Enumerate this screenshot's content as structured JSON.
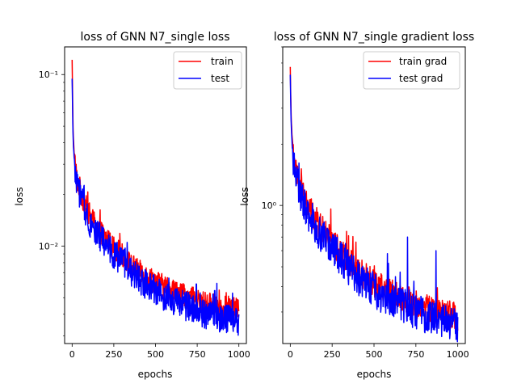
{
  "chart_data": [
    {
      "type": "line",
      "title": "loss of GNN N7_single loss",
      "xlabel": "epochs",
      "ylabel": "loss",
      "yscale": "log",
      "xlim": [
        -45,
        1045
      ],
      "ylim": [
        0.0027,
        0.145
      ],
      "xticks": [
        0,
        250,
        500,
        750,
        1000
      ],
      "xtick_labels": [
        "0",
        "250",
        "500",
        "750",
        "1000"
      ],
      "yticks_major": [
        0.01,
        0.1
      ],
      "ytick_labels": [
        "10⁻²",
        "10⁻¹"
      ],
      "legend": "top-right",
      "grid": false,
      "series": [
        {
          "name": "train",
          "color": "#ff0000",
          "x": [
            0,
            5,
            10,
            20,
            30,
            50,
            75,
            100,
            125,
            150,
            200,
            250,
            300,
            350,
            400,
            450,
            500,
            550,
            600,
            650,
            700,
            750,
            800,
            850,
            900,
            950,
            1000
          ],
          "y": [
            0.12,
            0.05,
            0.038,
            0.028,
            0.024,
            0.021,
            0.0175,
            0.0155,
            0.014,
            0.0128,
            0.011,
            0.0098,
            0.0088,
            0.0078,
            0.0071,
            0.0066,
            0.0062,
            0.0058,
            0.0055,
            0.0052,
            0.005,
            0.0048,
            0.0046,
            0.0045,
            0.0044,
            0.0043,
            0.0042
          ],
          "noise": 0.16
        },
        {
          "name": "test",
          "color": "#0000ff",
          "x": [
            0,
            5,
            10,
            20,
            30,
            50,
            75,
            100,
            125,
            150,
            200,
            250,
            300,
            350,
            400,
            450,
            500,
            550,
            600,
            650,
            700,
            750,
            800,
            850,
            900,
            950,
            1000
          ],
          "y": [
            0.093,
            0.045,
            0.035,
            0.026,
            0.022,
            0.0195,
            0.0162,
            0.0142,
            0.0128,
            0.0118,
            0.0101,
            0.009,
            0.0081,
            0.0071,
            0.0064,
            0.0059,
            0.0055,
            0.0051,
            0.0048,
            0.0046,
            0.0044,
            0.0042,
            0.004,
            0.0039,
            0.0038,
            0.0037,
            0.0036
          ],
          "noise": 0.2,
          "spikes": [
            [
              330,
              0.0105
            ],
            [
              580,
              0.0065
            ],
            [
              745,
              0.006
            ],
            [
              855,
              0.0055
            ]
          ]
        }
      ]
    },
    {
      "type": "line",
      "title": "loss of GNN N7_single gradient loss",
      "xlabel": "epochs",
      "ylabel": "loss",
      "yscale": "log",
      "xlim": [
        -45,
        1045
      ],
      "ylim": [
        0.21,
        6.0
      ],
      "xticks": [
        0,
        250,
        500,
        750,
        1000
      ],
      "xtick_labels": [
        "0",
        "250",
        "500",
        "750",
        "1000"
      ],
      "yticks_major": [
        1
      ],
      "ytick_labels": [
        "10⁰"
      ],
      "legend": "top-right",
      "grid": false,
      "series": [
        {
          "name": "train grad",
          "color": "#ff0000",
          "x": [
            0,
            5,
            10,
            20,
            30,
            50,
            75,
            100,
            125,
            150,
            200,
            250,
            300,
            350,
            400,
            450,
            500,
            550,
            600,
            650,
            700,
            750,
            800,
            850,
            900,
            950,
            1000
          ],
          "y": [
            4.7,
            2.8,
            2.2,
            1.7,
            1.5,
            1.3,
            1.12,
            1.0,
            0.92,
            0.85,
            0.74,
            0.66,
            0.59,
            0.53,
            0.48,
            0.445,
            0.415,
            0.39,
            0.37,
            0.355,
            0.34,
            0.325,
            0.315,
            0.305,
            0.297,
            0.29,
            0.283
          ],
          "noise": 0.16
        },
        {
          "name": "test grad",
          "color": "#0000ff",
          "x": [
            0,
            5,
            10,
            20,
            30,
            50,
            75,
            100,
            125,
            150,
            200,
            250,
            300,
            350,
            400,
            450,
            500,
            550,
            600,
            650,
            700,
            750,
            800,
            850,
            900,
            950,
            1000
          ],
          "y": [
            4.3,
            2.6,
            2.05,
            1.6,
            1.42,
            1.22,
            1.05,
            0.93,
            0.86,
            0.79,
            0.69,
            0.61,
            0.55,
            0.49,
            0.445,
            0.41,
            0.385,
            0.36,
            0.345,
            0.33,
            0.315,
            0.3,
            0.29,
            0.28,
            0.272,
            0.265,
            0.258
          ],
          "noise": 0.2,
          "spikes": [
            [
              330,
              0.65
            ],
            [
              580,
              0.58
            ],
            [
              700,
              0.7
            ],
            [
              870,
              0.6
            ]
          ]
        }
      ]
    }
  ]
}
